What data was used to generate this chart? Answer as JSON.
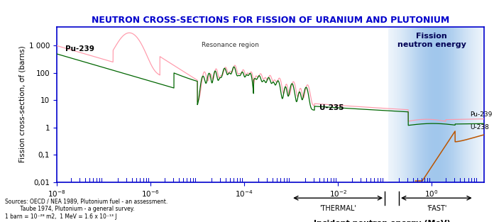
{
  "title": "NEUTRON CROSS-SECTIONS FOR FISSION OF URANIUM AND PLUTONIUM",
  "xlabel": "Incident neutron energy (MeV)",
  "ylabel": "Fission cross-section, σf (barns)",
  "title_color": "#0000cc",
  "title_fontsize": 9.0,
  "axis_color": "#0000cc",
  "fission_region_label": "Fission\nneutron energy",
  "sources_line1": "Sources: OECD / NEA 1989, Plutonium fuel - an assessment.",
  "sources_line2": "         Taube 1974, Plutonium - a general survey.",
  "sources_line3": "1 barn = 10⁻²⁸ m2,  1 MeV = 1.6 x 10⁻¹³ J",
  "thermal_label": "'THERMAL'",
  "fast_label": "'FAST'",
  "pu239_label": "Pu-239",
  "u235_label": "U-235",
  "u238_label": "U-238",
  "resonance_label": "Resonance region",
  "pu239_color": "#ff99aa",
  "u235_color": "#006600",
  "u238_color": "#bb5500",
  "fission_blue": "#5599dd",
  "bg_color": "#ffffff",
  "ytick_labels": [
    "0,01",
    "0,1",
    "1",
    "10",
    "100",
    "1 000"
  ],
  "ytick_values": [
    0.01,
    0.1,
    1.0,
    10.0,
    100.0,
    1000.0
  ]
}
